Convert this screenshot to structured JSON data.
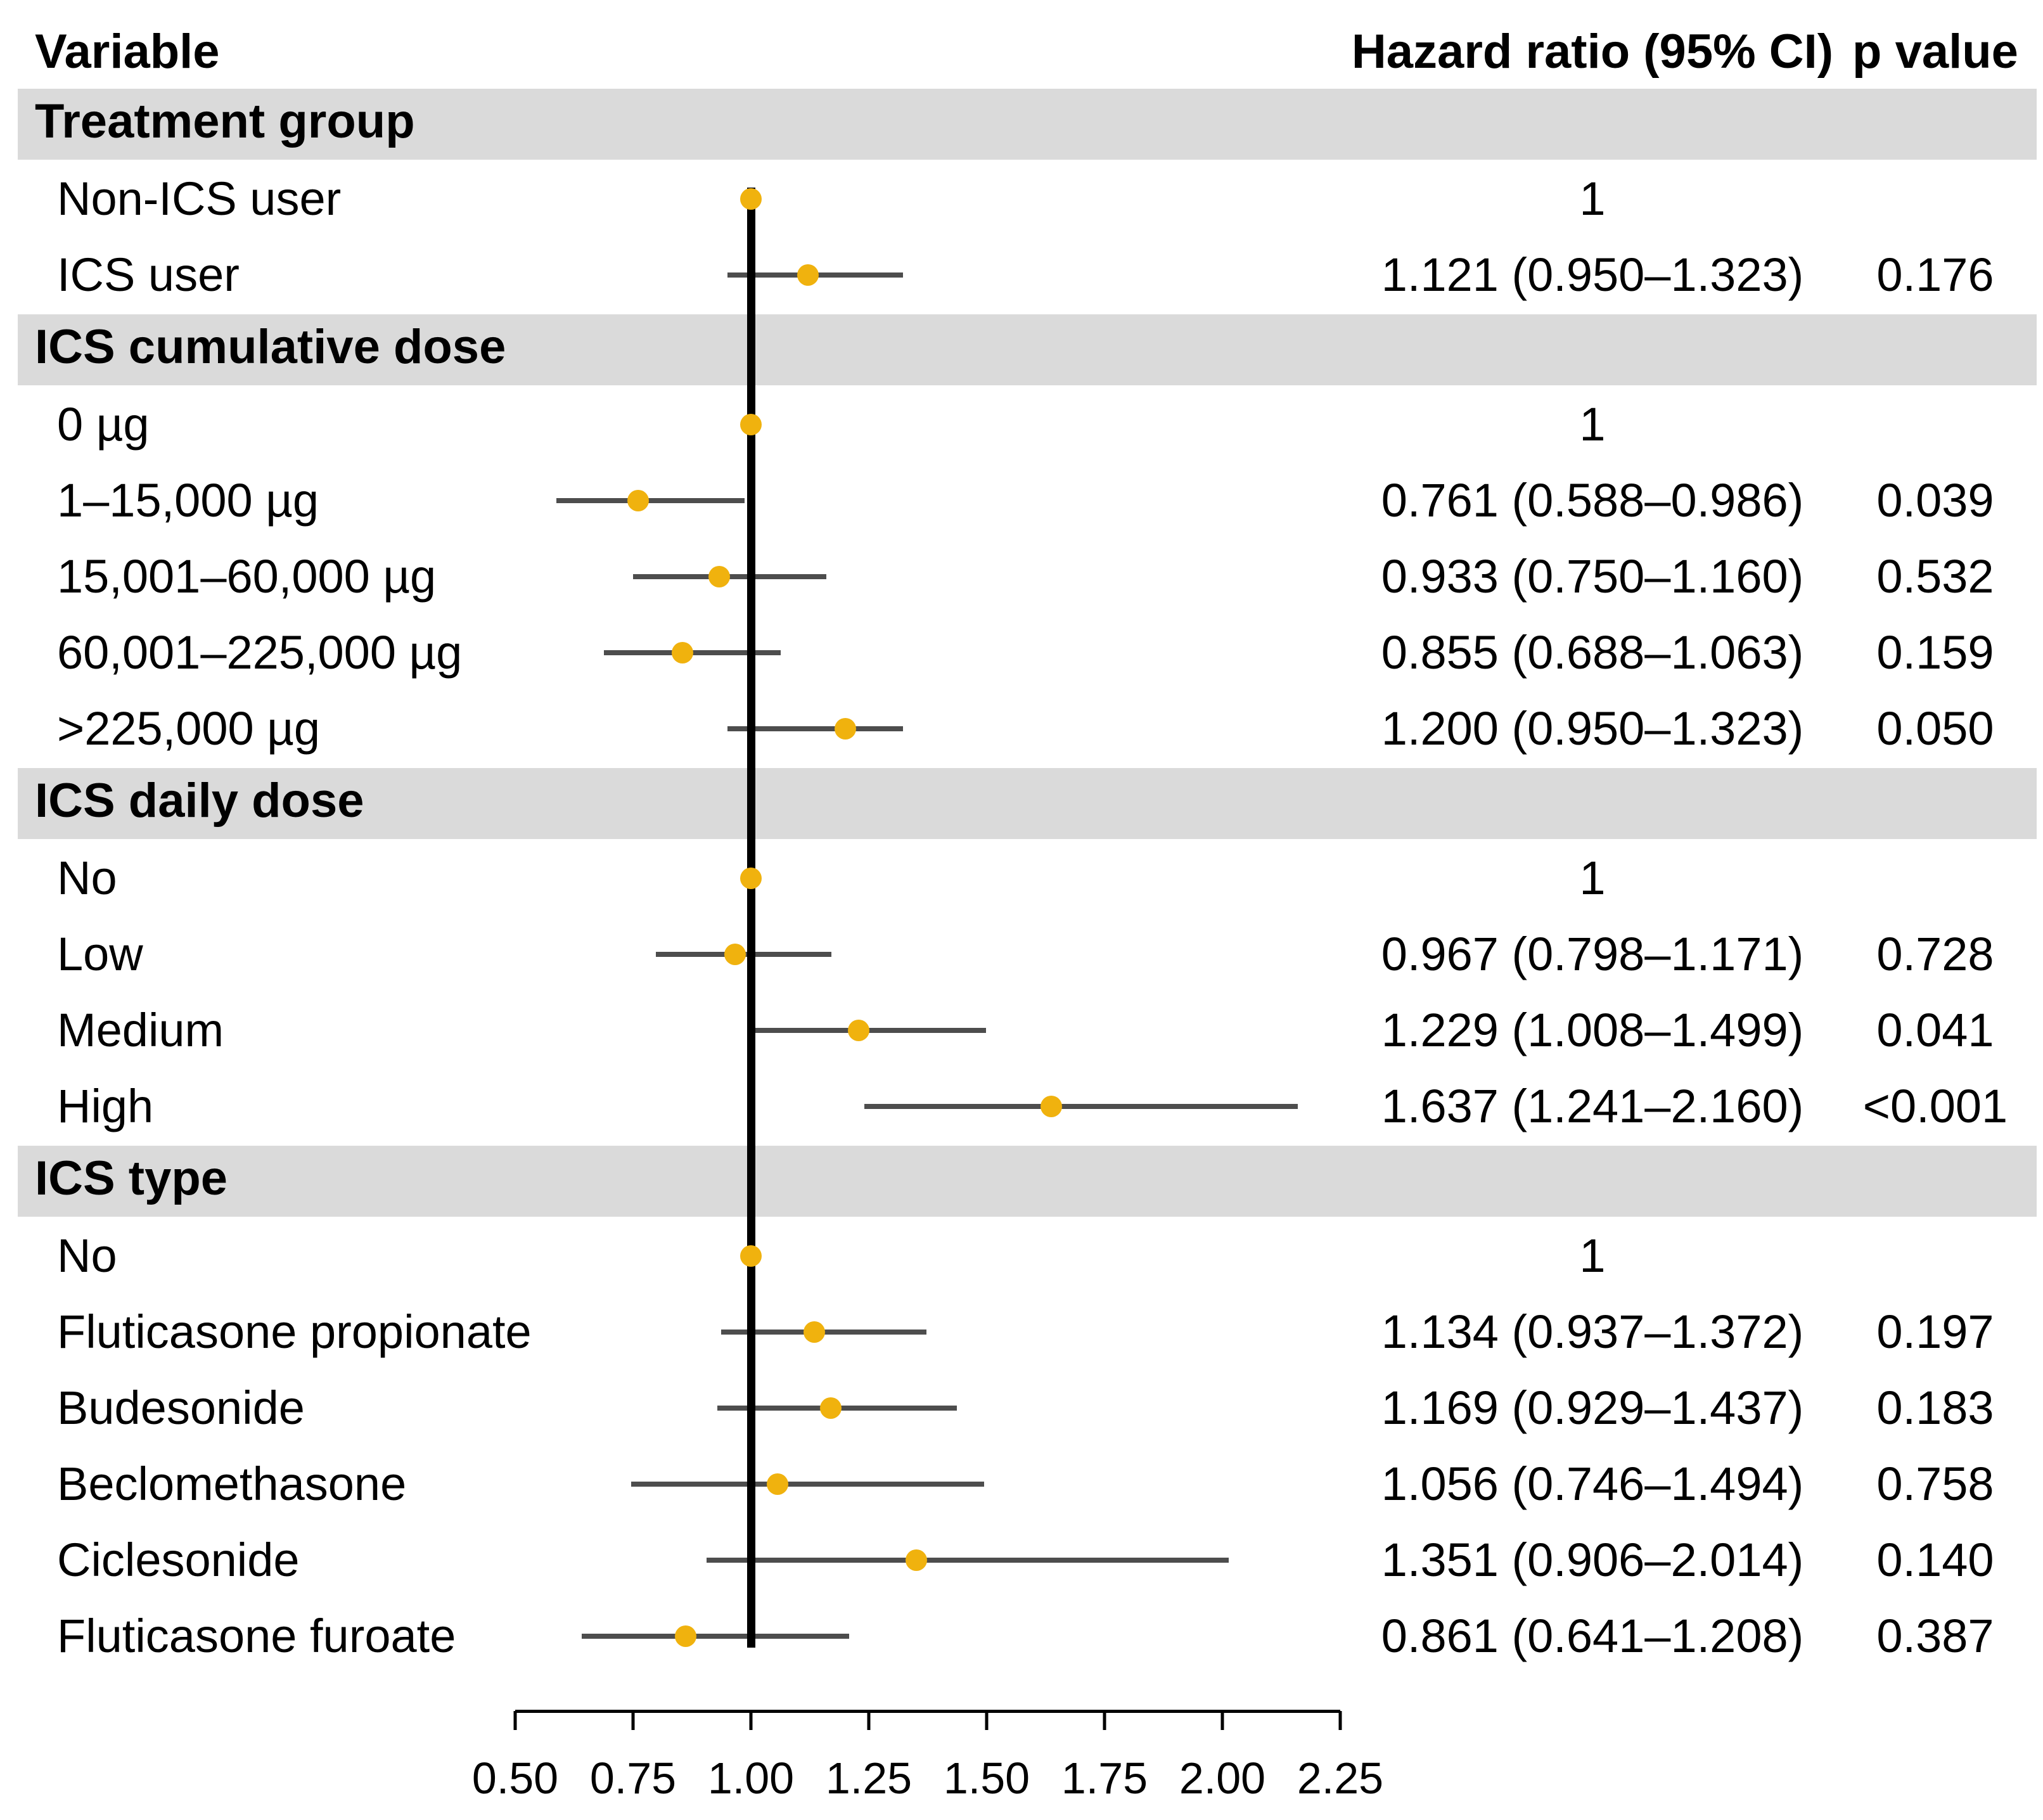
{
  "header": {
    "variable_label": "Variable",
    "hazard_ratio_label": "Hazard ratio (95% CI)",
    "p_value_label": "p value"
  },
  "colors": {
    "marker": "#F0B20E",
    "section_band": "#DADADA",
    "reference_line": "#000000",
    "ci_line": "#4D4D4D",
    "text": "#000000",
    "background": "#FFFFFF"
  },
  "chart_data": {
    "type": "forest",
    "title": "",
    "xlabel": "",
    "columns": [
      "Variable",
      "Hazard ratio (95% CI)",
      "p value"
    ],
    "x_axis": {
      "min": 0.5,
      "max": 2.25,
      "ticks": [
        0.5,
        0.75,
        1.0,
        1.25,
        1.5,
        1.75,
        2.0,
        2.25
      ],
      "tick_labels": [
        "0.50",
        "0.75",
        "1.00",
        "1.25",
        "1.50",
        "1.75",
        "2.00",
        "2.25"
      ],
      "reference_line": 1.0,
      "grid": false
    },
    "legend": null,
    "sections": [
      {
        "label": "Treatment group",
        "rows": [
          {
            "label": "Non-ICS user",
            "hr": 1.0,
            "ci_low": null,
            "ci_high": null,
            "hr_text": "1",
            "p_text": "",
            "reference": true
          },
          {
            "label": "ICS user",
            "hr": 1.121,
            "ci_low": 0.95,
            "ci_high": 1.323,
            "hr_text": "1.121 (0.950–1.323)",
            "p_text": "0.176",
            "reference": false
          }
        ]
      },
      {
        "label": "ICS cumulative dose",
        "rows": [
          {
            "label": "0 µg",
            "hr": 1.0,
            "ci_low": null,
            "ci_high": null,
            "hr_text": "1",
            "p_text": "",
            "reference": true
          },
          {
            "label": "1–15,000 µg",
            "hr": 0.761,
            "ci_low": 0.588,
            "ci_high": 0.986,
            "hr_text": "0.761 (0.588–0.986)",
            "p_text": "0.039",
            "reference": false
          },
          {
            "label": "15,001–60,000 µg",
            "hr": 0.933,
            "ci_low": 0.75,
            "ci_high": 1.16,
            "hr_text": "0.933 (0.750–1.160)",
            "p_text": "0.532",
            "reference": false
          },
          {
            "label": "60,001–225,000 µg",
            "hr": 0.855,
            "ci_low": 0.688,
            "ci_high": 1.063,
            "hr_text": "0.855 (0.688–1.063)",
            "p_text": "0.159",
            "reference": false
          },
          {
            "label": ">225,000 µg",
            "hr": 1.2,
            "ci_low": 0.95,
            "ci_high": 1.323,
            "hr_text": "1.200 (0.950–1.323)",
            "p_text": "0.050",
            "reference": false
          }
        ]
      },
      {
        "label": "ICS daily dose",
        "rows": [
          {
            "label": "No",
            "hr": 1.0,
            "ci_low": null,
            "ci_high": null,
            "hr_text": "1",
            "p_text": "",
            "reference": true
          },
          {
            "label": "Low",
            "hr": 0.967,
            "ci_low": 0.798,
            "ci_high": 1.171,
            "hr_text": "0.967 (0.798–1.171)",
            "p_text": "0.728",
            "reference": false
          },
          {
            "label": "Medium",
            "hr": 1.229,
            "ci_low": 1.008,
            "ci_high": 1.499,
            "hr_text": "1.229 (1.008–1.499)",
            "p_text": "0.041",
            "reference": false
          },
          {
            "label": "High",
            "hr": 1.637,
            "ci_low": 1.241,
            "ci_high": 2.16,
            "hr_text": "1.637 (1.241–2.160)",
            "p_text": "<0.001",
            "reference": false
          }
        ]
      },
      {
        "label": "ICS type",
        "rows": [
          {
            "label": "No",
            "hr": 1.0,
            "ci_low": null,
            "ci_high": null,
            "hr_text": "1",
            "p_text": "",
            "reference": true
          },
          {
            "label": "Fluticasone propionate",
            "hr": 1.134,
            "ci_low": 0.937,
            "ci_high": 1.372,
            "hr_text": "1.134 (0.937–1.372)",
            "p_text": "0.197",
            "reference": false
          },
          {
            "label": "Budesonide",
            "hr": 1.169,
            "ci_low": 0.929,
            "ci_high": 1.437,
            "hr_text": "1.169 (0.929–1.437)",
            "p_text": "0.183",
            "reference": false
          },
          {
            "label": "Beclomethasone",
            "hr": 1.056,
            "ci_low": 0.746,
            "ci_high": 1.494,
            "hr_text": "1.056 (0.746–1.494)",
            "p_text": "0.758",
            "reference": false
          },
          {
            "label": "Ciclesonide",
            "hr": 1.351,
            "ci_low": 0.906,
            "ci_high": 2.014,
            "hr_text": "1.351 (0.906–2.014)",
            "p_text": "0.140",
            "reference": false
          },
          {
            "label": "Fluticasone furoate",
            "hr": 0.861,
            "ci_low": 0.641,
            "ci_high": 1.208,
            "hr_text": "0.861 (0.641–1.208)",
            "p_text": "0.387",
            "reference": false
          }
        ]
      }
    ]
  }
}
